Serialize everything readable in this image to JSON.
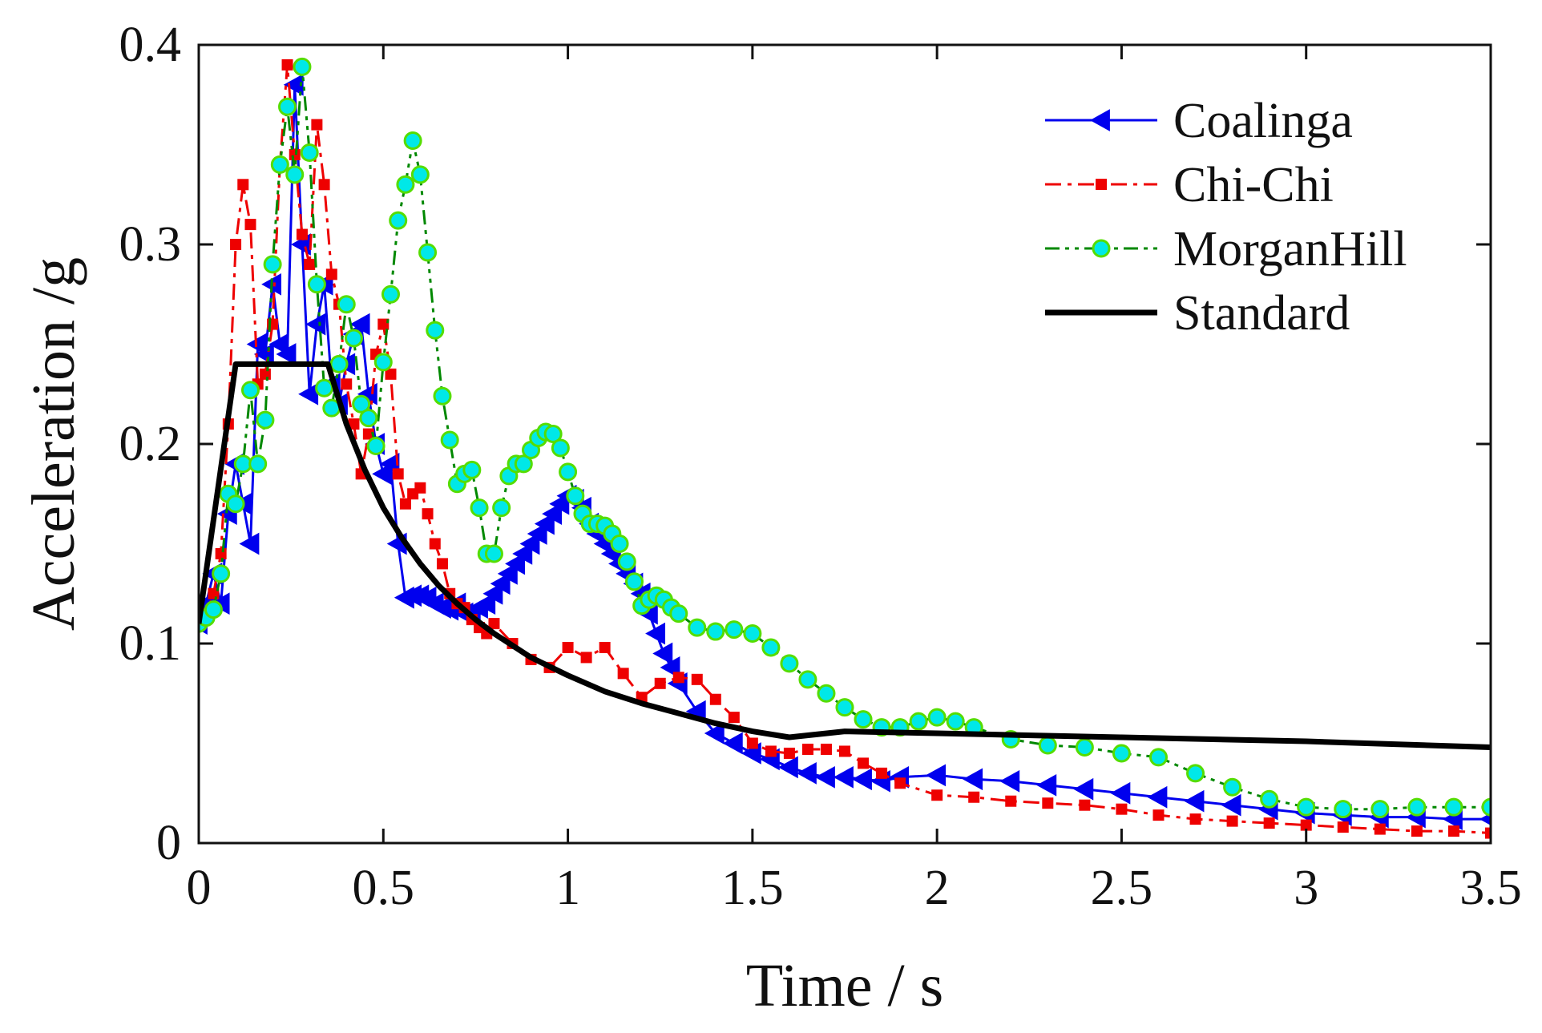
{
  "chart_data": {
    "type": "line",
    "title": "",
    "xlabel": "Time / s",
    "ylabel": "Acceleration /g",
    "xlim": [
      0,
      3.5
    ],
    "ylim": [
      0,
      0.4
    ],
    "xticks": [
      0,
      0.5,
      1,
      1.5,
      2,
      2.5,
      3,
      3.5
    ],
    "xtick_labels": [
      "0",
      "0.5",
      "1",
      "1.5",
      "2",
      "2.5",
      "3",
      "3.5"
    ],
    "yticks": [
      0,
      0.1,
      0.2,
      0.3,
      0.4
    ],
    "ytick_labels": [
      "0",
      "0.1",
      "0.2",
      "0.3",
      "0.4"
    ],
    "grid": false,
    "legend_position": "top-right",
    "series": [
      {
        "name": "Coalinga",
        "color": "#0000ee",
        "line": "solid",
        "marker": "triangle-left",
        "x": [
          0.0,
          0.02,
          0.04,
          0.06,
          0.08,
          0.1,
          0.12,
          0.14,
          0.16,
          0.18,
          0.2,
          0.22,
          0.24,
          0.26,
          0.28,
          0.3,
          0.32,
          0.34,
          0.36,
          0.38,
          0.4,
          0.42,
          0.44,
          0.46,
          0.48,
          0.5,
          0.52,
          0.54,
          0.56,
          0.58,
          0.6,
          0.62,
          0.64,
          0.66,
          0.68,
          0.7,
          0.72,
          0.74,
          0.76,
          0.78,
          0.8,
          0.82,
          0.84,
          0.86,
          0.88,
          0.9,
          0.92,
          0.94,
          0.96,
          0.98,
          1.0,
          1.02,
          1.04,
          1.06,
          1.08,
          1.1,
          1.12,
          1.14,
          1.16,
          1.18,
          1.2,
          1.22,
          1.24,
          1.26,
          1.28,
          1.3,
          1.35,
          1.4,
          1.45,
          1.5,
          1.55,
          1.6,
          1.65,
          1.7,
          1.75,
          1.8,
          1.85,
          1.9,
          2.0,
          2.1,
          2.2,
          2.3,
          2.4,
          2.5,
          2.6,
          2.7,
          2.8,
          2.9,
          3.0,
          3.1,
          3.2,
          3.3,
          3.4,
          3.5
        ],
        "values": [
          0.11,
          0.12,
          0.135,
          0.12,
          0.165,
          0.19,
          0.17,
          0.15,
          0.25,
          0.245,
          0.28,
          0.25,
          0.245,
          0.38,
          0.3,
          0.225,
          0.26,
          0.28,
          0.23,
          0.22,
          0.24,
          0.255,
          0.26,
          0.225,
          0.2,
          0.185,
          0.19,
          0.15,
          0.123,
          0.124,
          0.124,
          0.123,
          0.12,
          0.118,
          0.117,
          0.12,
          0.115,
          0.114,
          0.118,
          0.12,
          0.125,
          0.13,
          0.135,
          0.14,
          0.145,
          0.15,
          0.155,
          0.16,
          0.165,
          0.17,
          0.174,
          0.172,
          0.168,
          0.16,
          0.155,
          0.15,
          0.145,
          0.14,
          0.135,
          0.13,
          0.125,
          0.115,
          0.105,
          0.095,
          0.088,
          0.08,
          0.066,
          0.055,
          0.05,
          0.045,
          0.042,
          0.038,
          0.035,
          0.033,
          0.033,
          0.032,
          0.031,
          0.033,
          0.034,
          0.032,
          0.031,
          0.029,
          0.027,
          0.025,
          0.023,
          0.021,
          0.019,
          0.017,
          0.015,
          0.014,
          0.013,
          0.013,
          0.012,
          0.012
        ]
      },
      {
        "name": "Chi-Chi",
        "color": "#ee0000",
        "line": "dashdot",
        "marker": "square",
        "x": [
          0.0,
          0.02,
          0.04,
          0.06,
          0.08,
          0.1,
          0.12,
          0.14,
          0.16,
          0.18,
          0.2,
          0.22,
          0.24,
          0.26,
          0.28,
          0.3,
          0.32,
          0.34,
          0.36,
          0.38,
          0.4,
          0.42,
          0.44,
          0.46,
          0.48,
          0.5,
          0.52,
          0.54,
          0.56,
          0.58,
          0.6,
          0.62,
          0.64,
          0.66,
          0.68,
          0.7,
          0.72,
          0.74,
          0.76,
          0.78,
          0.8,
          0.85,
          0.9,
          0.95,
          1.0,
          1.05,
          1.1,
          1.15,
          1.2,
          1.25,
          1.3,
          1.35,
          1.4,
          1.45,
          1.5,
          1.55,
          1.6,
          1.65,
          1.7,
          1.75,
          1.8,
          1.85,
          1.9,
          2.0,
          2.1,
          2.2,
          2.3,
          2.4,
          2.5,
          2.6,
          2.7,
          2.8,
          2.9,
          3.0,
          3.1,
          3.2,
          3.3,
          3.4,
          3.5
        ],
        "values": [
          0.11,
          0.115,
          0.125,
          0.145,
          0.21,
          0.3,
          0.33,
          0.31,
          0.23,
          0.235,
          0.26,
          0.34,
          0.39,
          0.345,
          0.305,
          0.29,
          0.36,
          0.33,
          0.285,
          0.27,
          0.23,
          0.21,
          0.185,
          0.205,
          0.245,
          0.26,
          0.235,
          0.185,
          0.17,
          0.175,
          0.178,
          0.165,
          0.15,
          0.14,
          0.125,
          0.12,
          0.118,
          0.112,
          0.108,
          0.105,
          0.11,
          0.1,
          0.092,
          0.088,
          0.098,
          0.093,
          0.098,
          0.085,
          0.073,
          0.08,
          0.083,
          0.082,
          0.072,
          0.063,
          0.05,
          0.046,
          0.045,
          0.047,
          0.047,
          0.046,
          0.04,
          0.035,
          0.03,
          0.024,
          0.023,
          0.021,
          0.02,
          0.019,
          0.017,
          0.014,
          0.012,
          0.011,
          0.01,
          0.009,
          0.008,
          0.007,
          0.006,
          0.006,
          0.005
        ]
      },
      {
        "name": "MorganHill",
        "color": "#008800",
        "line": "dashdotdot",
        "marker": "circle",
        "marker_fill": "#00e8e8",
        "marker_edge": "#55dd00",
        "x": [
          0.0,
          0.02,
          0.04,
          0.06,
          0.08,
          0.1,
          0.12,
          0.14,
          0.16,
          0.18,
          0.2,
          0.22,
          0.24,
          0.26,
          0.28,
          0.3,
          0.32,
          0.34,
          0.36,
          0.38,
          0.4,
          0.42,
          0.44,
          0.46,
          0.48,
          0.5,
          0.52,
          0.54,
          0.56,
          0.58,
          0.6,
          0.62,
          0.64,
          0.66,
          0.68,
          0.7,
          0.72,
          0.74,
          0.76,
          0.78,
          0.8,
          0.82,
          0.84,
          0.86,
          0.88,
          0.9,
          0.92,
          0.94,
          0.96,
          0.98,
          1.0,
          1.02,
          1.04,
          1.06,
          1.08,
          1.1,
          1.12,
          1.14,
          1.16,
          1.18,
          1.2,
          1.22,
          1.24,
          1.26,
          1.28,
          1.3,
          1.35,
          1.4,
          1.45,
          1.5,
          1.55,
          1.6,
          1.65,
          1.7,
          1.75,
          1.8,
          1.85,
          1.9,
          1.95,
          2.0,
          2.05,
          2.1,
          2.2,
          2.3,
          2.4,
          2.5,
          2.6,
          2.7,
          2.8,
          2.9,
          3.0,
          3.1,
          3.2,
          3.3,
          3.4,
          3.5
        ],
        "values": [
          0.11,
          0.113,
          0.117,
          0.135,
          0.175,
          0.17,
          0.19,
          0.227,
          0.19,
          0.212,
          0.29,
          0.34,
          0.369,
          0.335,
          0.389,
          0.346,
          0.28,
          0.228,
          0.218,
          0.24,
          0.27,
          0.253,
          0.22,
          0.213,
          0.199,
          0.241,
          0.275,
          0.312,
          0.33,
          0.352,
          0.335,
          0.296,
          0.257,
          0.224,
          0.202,
          0.18,
          0.185,
          0.187,
          0.168,
          0.145,
          0.145,
          0.168,
          0.184,
          0.19,
          0.19,
          0.197,
          0.203,
          0.206,
          0.205,
          0.198,
          0.186,
          0.174,
          0.165,
          0.16,
          0.16,
          0.159,
          0.155,
          0.15,
          0.141,
          0.131,
          0.119,
          0.122,
          0.124,
          0.122,
          0.118,
          0.115,
          0.108,
          0.106,
          0.107,
          0.105,
          0.098,
          0.09,
          0.082,
          0.075,
          0.068,
          0.062,
          0.058,
          0.058,
          0.061,
          0.063,
          0.061,
          0.058,
          0.052,
          0.049,
          0.048,
          0.045,
          0.043,
          0.035,
          0.028,
          0.022,
          0.018,
          0.017,
          0.017,
          0.018,
          0.018,
          0.018
        ]
      },
      {
        "name": "Standard",
        "color": "#000000",
        "line": "solid-thick",
        "marker": "none",
        "x": [
          0.0,
          0.1,
          0.35,
          0.4,
          0.45,
          0.5,
          0.55,
          0.6,
          0.65,
          0.7,
          0.75,
          0.8,
          0.9,
          1.0,
          1.1,
          1.2,
          1.3,
          1.4,
          1.5,
          1.6,
          1.75,
          2.0,
          2.5,
          3.0,
          3.5
        ],
        "values": [
          0.11,
          0.24,
          0.24,
          0.21,
          0.187,
          0.168,
          0.153,
          0.14,
          0.129,
          0.12,
          0.112,
          0.105,
          0.093,
          0.084,
          0.076,
          0.07,
          0.065,
          0.06,
          0.056,
          0.053,
          0.056,
          0.055,
          0.053,
          0.051,
          0.048
        ]
      }
    ]
  }
}
